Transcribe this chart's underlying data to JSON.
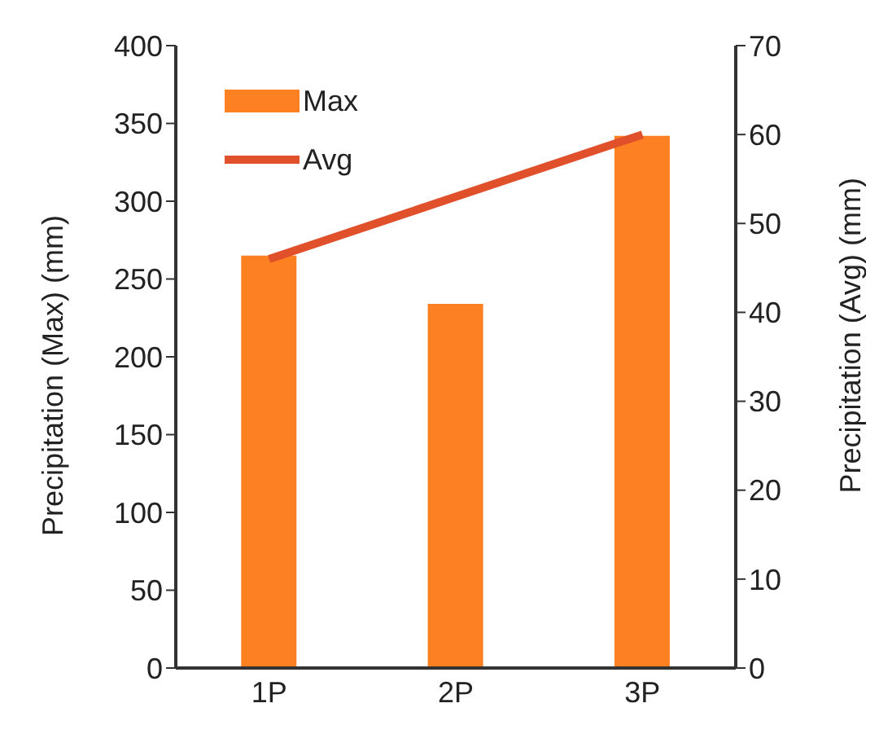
{
  "chart_data": {
    "type": "bar",
    "categories": [
      "1P",
      "2P",
      "3P"
    ],
    "series": [
      {
        "name": "Max",
        "color": "#fd8023",
        "values": [
          265,
          234,
          342
        ]
      },
      {
        "name": "Avg",
        "type": "line",
        "color": "#e0502a",
        "axis": "y2",
        "values": [
          46,
          53,
          60
        ]
      }
    ],
    "ylabel": "Precipitation (Max) (mm)",
    "y2label": "Precipitation (Avg) (mm)",
    "ylim": [
      0,
      400
    ],
    "yticks": [
      0,
      50,
      100,
      150,
      200,
      250,
      300,
      350,
      400
    ],
    "y2lim": [
      0,
      70
    ],
    "y2ticks": [
      0,
      10,
      20,
      30,
      40,
      50,
      60,
      70
    ],
    "legend": "top left",
    "marker": "none"
  }
}
